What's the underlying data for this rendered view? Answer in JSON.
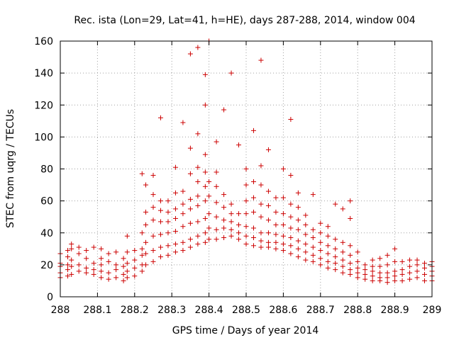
{
  "chart_data": {
    "type": "scatter",
    "title": "Rec. ista (Lon=29, Lat=41, h=HE), days 287-288, 2014, window 004",
    "xlabel": "GPS time / Days of year 2014",
    "ylabel": "STEC from uqrg / TECUs",
    "xlim": [
      288,
      289
    ],
    "ylim": [
      0,
      160
    ],
    "xticks": [
      288,
      288.1,
      288.2,
      288.3,
      288.4,
      288.5,
      288.6,
      288.7,
      288.8,
      288.9,
      289
    ],
    "xtick_labels": [
      "288",
      "288.1",
      "288.2",
      "288.3",
      "288.4",
      "288.5",
      "288.6",
      "288.7",
      "288.8",
      "288.9",
      "289"
    ],
    "yticks": [
      0,
      20,
      40,
      60,
      80,
      100,
      120,
      140,
      160
    ],
    "ytick_labels": [
      "0",
      "20",
      "40",
      "60",
      "80",
      "100",
      "120",
      "140",
      "160"
    ],
    "grid": true,
    "marker": "+",
    "color": "#cc0000",
    "series": [
      {
        "points": [
          [
            288.0,
            12
          ],
          [
            288.0,
            15
          ],
          [
            288.0,
            19
          ],
          [
            288.0,
            21
          ],
          [
            288.0,
            27
          ],
          [
            288.02,
            13
          ],
          [
            288.02,
            17
          ],
          [
            288.02,
            20
          ],
          [
            288.02,
            25
          ],
          [
            288.02,
            29
          ],
          [
            288.03,
            14
          ],
          [
            288.03,
            19
          ],
          [
            288.03,
            23
          ],
          [
            288.03,
            30
          ],
          [
            288.03,
            33
          ],
          [
            288.05,
            16
          ],
          [
            288.05,
            20
          ],
          [
            288.05,
            27
          ],
          [
            288.05,
            31
          ],
          [
            288.07,
            15
          ],
          [
            288.07,
            18
          ],
          [
            288.07,
            24
          ],
          [
            288.07,
            29
          ],
          [
            288.09,
            14
          ],
          [
            288.09,
            17
          ],
          [
            288.09,
            21
          ],
          [
            288.09,
            31
          ],
          [
            288.11,
            12
          ],
          [
            288.11,
            16
          ],
          [
            288.11,
            20
          ],
          [
            288.11,
            24
          ],
          [
            288.11,
            30
          ],
          [
            288.13,
            11
          ],
          [
            288.13,
            15
          ],
          [
            288.13,
            22
          ],
          [
            288.13,
            27
          ],
          [
            288.15,
            12
          ],
          [
            288.15,
            17
          ],
          [
            288.15,
            20
          ],
          [
            288.15,
            28
          ],
          [
            288.17,
            10
          ],
          [
            288.17,
            14
          ],
          [
            288.17,
            19
          ],
          [
            288.17,
            24
          ],
          [
            288.18,
            12
          ],
          [
            288.18,
            16
          ],
          [
            288.18,
            21
          ],
          [
            288.18,
            28
          ],
          [
            288.18,
            38
          ],
          [
            288.2,
            13
          ],
          [
            288.2,
            18
          ],
          [
            288.2,
            23
          ],
          [
            288.2,
            29
          ],
          [
            288.22,
            16
          ],
          [
            288.22,
            20
          ],
          [
            288.22,
            26
          ],
          [
            288.22,
            30
          ],
          [
            288.22,
            40
          ],
          [
            288.22,
            77
          ],
          [
            288.23,
            20
          ],
          [
            288.23,
            27
          ],
          [
            288.23,
            34
          ],
          [
            288.23,
            45
          ],
          [
            288.23,
            53
          ],
          [
            288.23,
            70
          ],
          [
            288.25,
            22
          ],
          [
            288.25,
            29
          ],
          [
            288.25,
            38
          ],
          [
            288.25,
            48
          ],
          [
            288.25,
            56
          ],
          [
            288.25,
            64
          ],
          [
            288.25,
            76
          ],
          [
            288.27,
            25
          ],
          [
            288.27,
            31
          ],
          [
            288.27,
            39
          ],
          [
            288.27,
            47
          ],
          [
            288.27,
            54
          ],
          [
            288.27,
            60
          ],
          [
            288.27,
            112
          ],
          [
            288.29,
            26
          ],
          [
            288.29,
            32
          ],
          [
            288.29,
            40
          ],
          [
            288.29,
            47
          ],
          [
            288.29,
            53
          ],
          [
            288.29,
            60
          ],
          [
            288.31,
            28
          ],
          [
            288.31,
            33
          ],
          [
            288.31,
            41
          ],
          [
            288.31,
            49
          ],
          [
            288.31,
            55
          ],
          [
            288.31,
            65
          ],
          [
            288.31,
            81
          ],
          [
            288.33,
            29
          ],
          [
            288.33,
            34
          ],
          [
            288.33,
            44
          ],
          [
            288.33,
            52
          ],
          [
            288.33,
            58
          ],
          [
            288.33,
            66
          ],
          [
            288.33,
            109
          ],
          [
            288.35,
            31
          ],
          [
            288.35,
            36
          ],
          [
            288.35,
            46
          ],
          [
            288.35,
            55
          ],
          [
            288.35,
            61
          ],
          [
            288.35,
            77
          ],
          [
            288.35,
            93
          ],
          [
            288.35,
            152
          ],
          [
            288.37,
            33
          ],
          [
            288.37,
            38
          ],
          [
            288.37,
            47
          ],
          [
            288.37,
            57
          ],
          [
            288.37,
            63
          ],
          [
            288.37,
            72
          ],
          [
            288.37,
            81
          ],
          [
            288.37,
            102
          ],
          [
            288.37,
            156
          ],
          [
            288.39,
            34
          ],
          [
            288.39,
            40
          ],
          [
            288.39,
            49
          ],
          [
            288.39,
            60
          ],
          [
            288.39,
            69
          ],
          [
            288.39,
            78
          ],
          [
            288.39,
            89
          ],
          [
            288.39,
            120
          ],
          [
            288.39,
            139
          ],
          [
            288.4,
            36
          ],
          [
            288.4,
            43
          ],
          [
            288.4,
            52
          ],
          [
            288.4,
            63
          ],
          [
            288.4,
            72
          ],
          [
            288.4,
            160
          ],
          [
            288.42,
            36
          ],
          [
            288.42,
            42
          ],
          [
            288.42,
            50
          ],
          [
            288.42,
            59
          ],
          [
            288.42,
            69
          ],
          [
            288.42,
            78
          ],
          [
            288.42,
            97
          ],
          [
            288.44,
            37
          ],
          [
            288.44,
            43
          ],
          [
            288.44,
            48
          ],
          [
            288.44,
            56
          ],
          [
            288.44,
            64
          ],
          [
            288.44,
            117
          ],
          [
            288.46,
            38
          ],
          [
            288.46,
            42
          ],
          [
            288.46,
            47
          ],
          [
            288.46,
            52
          ],
          [
            288.46,
            58
          ],
          [
            288.46,
            140
          ],
          [
            288.48,
            36
          ],
          [
            288.48,
            40
          ],
          [
            288.48,
            45
          ],
          [
            288.48,
            52
          ],
          [
            288.48,
            95
          ],
          [
            288.5,
            33
          ],
          [
            288.5,
            38
          ],
          [
            288.5,
            44
          ],
          [
            288.5,
            52
          ],
          [
            288.5,
            60
          ],
          [
            288.5,
            70
          ],
          [
            288.5,
            80
          ],
          [
            288.52,
            32
          ],
          [
            288.52,
            37
          ],
          [
            288.52,
            43
          ],
          [
            288.52,
            53
          ],
          [
            288.52,
            62
          ],
          [
            288.52,
            72
          ],
          [
            288.52,
            104
          ],
          [
            288.54,
            31
          ],
          [
            288.54,
            35
          ],
          [
            288.54,
            40
          ],
          [
            288.54,
            50
          ],
          [
            288.54,
            58
          ],
          [
            288.54,
            70
          ],
          [
            288.54,
            82
          ],
          [
            288.54,
            148
          ],
          [
            288.56,
            31
          ],
          [
            288.56,
            34
          ],
          [
            288.56,
            40
          ],
          [
            288.56,
            48
          ],
          [
            288.56,
            57
          ],
          [
            288.56,
            66
          ],
          [
            288.56,
            92
          ],
          [
            288.58,
            30
          ],
          [
            288.58,
            34
          ],
          [
            288.58,
            39
          ],
          [
            288.58,
            45
          ],
          [
            288.58,
            53
          ],
          [
            288.58,
            62
          ],
          [
            288.6,
            29
          ],
          [
            288.6,
            33
          ],
          [
            288.6,
            38
          ],
          [
            288.6,
            45
          ],
          [
            288.6,
            52
          ],
          [
            288.6,
            62
          ],
          [
            288.6,
            80
          ],
          [
            288.62,
            27
          ],
          [
            288.62,
            32
          ],
          [
            288.62,
            37
          ],
          [
            288.62,
            43
          ],
          [
            288.62,
            50
          ],
          [
            288.62,
            58
          ],
          [
            288.62,
            76
          ],
          [
            288.62,
            111
          ],
          [
            288.64,
            25
          ],
          [
            288.64,
            30
          ],
          [
            288.64,
            35
          ],
          [
            288.64,
            42
          ],
          [
            288.64,
            48
          ],
          [
            288.64,
            56
          ],
          [
            288.64,
            65
          ],
          [
            288.66,
            23
          ],
          [
            288.66,
            28
          ],
          [
            288.66,
            33
          ],
          [
            288.66,
            39
          ],
          [
            288.66,
            45
          ],
          [
            288.66,
            51
          ],
          [
            288.68,
            22
          ],
          [
            288.68,
            26
          ],
          [
            288.68,
            31
          ],
          [
            288.68,
            37
          ],
          [
            288.68,
            42
          ],
          [
            288.68,
            64
          ],
          [
            288.7,
            20
          ],
          [
            288.7,
            24
          ],
          [
            288.7,
            29
          ],
          [
            288.7,
            34
          ],
          [
            288.7,
            40
          ],
          [
            288.7,
            46
          ],
          [
            288.72,
            18
          ],
          [
            288.72,
            22
          ],
          [
            288.72,
            27
          ],
          [
            288.72,
            32
          ],
          [
            288.72,
            38
          ],
          [
            288.72,
            44
          ],
          [
            288.74,
            17
          ],
          [
            288.74,
            21
          ],
          [
            288.74,
            25
          ],
          [
            288.74,
            30
          ],
          [
            288.74,
            36
          ],
          [
            288.74,
            58
          ],
          [
            288.76,
            15
          ],
          [
            288.76,
            19
          ],
          [
            288.76,
            23
          ],
          [
            288.76,
            28
          ],
          [
            288.76,
            34
          ],
          [
            288.76,
            55
          ],
          [
            288.78,
            14
          ],
          [
            288.78,
            17
          ],
          [
            288.78,
            21
          ],
          [
            288.78,
            26
          ],
          [
            288.78,
            32
          ],
          [
            288.78,
            49
          ],
          [
            288.78,
            60
          ],
          [
            288.8,
            12
          ],
          [
            288.8,
            15
          ],
          [
            288.8,
            18
          ],
          [
            288.8,
            22
          ],
          [
            288.8,
            28
          ],
          [
            288.82,
            11
          ],
          [
            288.82,
            14
          ],
          [
            288.82,
            17
          ],
          [
            288.82,
            20
          ],
          [
            288.84,
            10
          ],
          [
            288.84,
            13
          ],
          [
            288.84,
            16
          ],
          [
            288.84,
            19
          ],
          [
            288.84,
            23
          ],
          [
            288.86,
            10
          ],
          [
            288.86,
            12
          ],
          [
            288.86,
            15
          ],
          [
            288.86,
            19
          ],
          [
            288.86,
            24
          ],
          [
            288.88,
            9
          ],
          [
            288.88,
            12
          ],
          [
            288.88,
            15
          ],
          [
            288.88,
            20
          ],
          [
            288.88,
            26
          ],
          [
            288.9,
            10
          ],
          [
            288.9,
            13
          ],
          [
            288.9,
            16
          ],
          [
            288.9,
            22
          ],
          [
            288.9,
            30
          ],
          [
            288.92,
            10
          ],
          [
            288.92,
            14
          ],
          [
            288.92,
            17
          ],
          [
            288.92,
            22
          ],
          [
            288.94,
            11
          ],
          [
            288.94,
            15
          ],
          [
            288.94,
            19
          ],
          [
            288.94,
            23
          ],
          [
            288.96,
            12
          ],
          [
            288.96,
            16
          ],
          [
            288.96,
            20
          ],
          [
            288.96,
            23
          ],
          [
            288.98,
            10
          ],
          [
            288.98,
            14
          ],
          [
            288.98,
            18
          ],
          [
            288.98,
            21
          ],
          [
            289.0,
            10
          ],
          [
            289.0,
            13
          ],
          [
            289.0,
            16
          ],
          [
            289.0,
            19
          ],
          [
            289.0,
            22
          ]
        ]
      }
    ]
  }
}
